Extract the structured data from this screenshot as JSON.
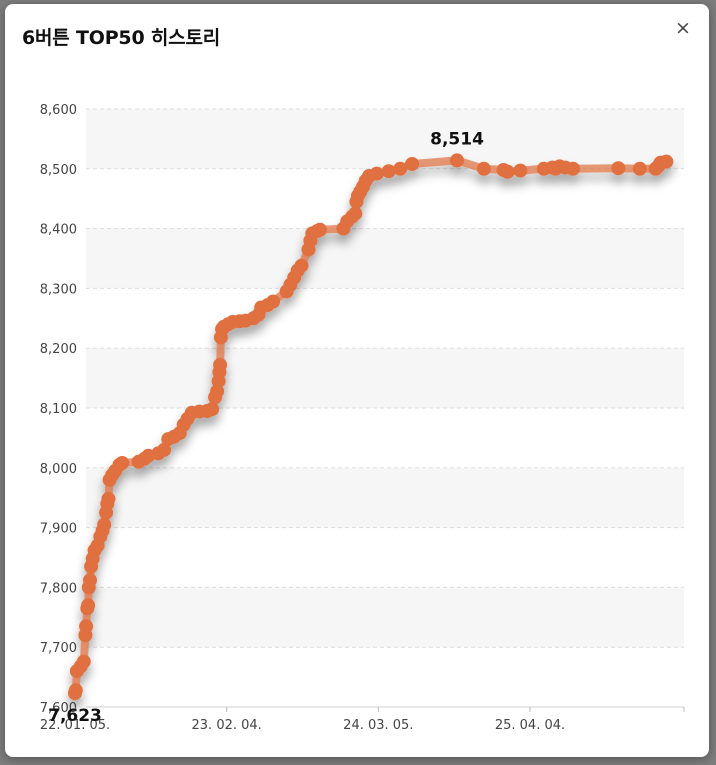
{
  "modal": {
    "title": "6버튼 TOP50 히스토리",
    "close_icon": "close-icon",
    "close_glyph": "×"
  },
  "colors": {
    "line": "#e07040",
    "band": "#f6f6f6",
    "grid": "#dddddd"
  },
  "chart_data": {
    "type": "line",
    "title": "",
    "xlabel": "",
    "ylabel": "",
    "ylim": [
      7600,
      8600
    ],
    "yticks": [
      "8,600",
      "8,500",
      "8,400",
      "8,300",
      "8,200",
      "8,100",
      "8,000",
      "7,900",
      "7,800",
      "7,700",
      "7,600"
    ],
    "xticks": [
      "22. 01. 05.",
      "23. 02. 04.",
      "24. 03. 05.",
      "25. 04. 04."
    ],
    "xtick_dates": [
      "2022-01-05",
      "2023-02-04",
      "2024-03-05",
      "2025-04-04"
    ],
    "annotations": [
      {
        "label": "7,623",
        "date": "2022-01-05",
        "value": 7623
      },
      {
        "label": "8,514",
        "date": "2024-09-26",
        "value": 8514
      }
    ],
    "series": [
      {
        "values": [
          [
            "2022-01-05",
            7623
          ],
          [
            "2022-01-07",
            7628
          ],
          [
            "2022-01-10",
            7660
          ],
          [
            "2022-01-20",
            7668
          ],
          [
            "2022-01-28",
            7676
          ],
          [
            "2022-02-01",
            7720
          ],
          [
            "2022-02-03",
            7735
          ],
          [
            "2022-02-06",
            7765
          ],
          [
            "2022-02-08",
            7770
          ],
          [
            "2022-02-10",
            7800
          ],
          [
            "2022-02-13",
            7812
          ],
          [
            "2022-02-16",
            7835
          ],
          [
            "2022-02-20",
            7848
          ],
          [
            "2022-02-25",
            7862
          ],
          [
            "2022-03-05",
            7870
          ],
          [
            "2022-03-12",
            7885
          ],
          [
            "2022-03-18",
            7895
          ],
          [
            "2022-03-22",
            7905
          ],
          [
            "2022-03-27",
            7925
          ],
          [
            "2022-03-30",
            7940
          ],
          [
            "2022-04-02",
            7948
          ],
          [
            "2022-04-05",
            7980
          ],
          [
            "2022-04-12",
            7988
          ],
          [
            "2022-04-20",
            7995
          ],
          [
            "2022-05-01",
            8005
          ],
          [
            "2022-05-08",
            8008
          ],
          [
            "2022-06-20",
            8010
          ],
          [
            "2022-07-05",
            8015
          ],
          [
            "2022-07-15",
            8020
          ],
          [
            "2022-08-10",
            8024
          ],
          [
            "2022-08-25",
            8030
          ],
          [
            "2022-09-05",
            8048
          ],
          [
            "2022-09-20",
            8052
          ],
          [
            "2022-10-05",
            8058
          ],
          [
            "2022-10-15",
            8072
          ],
          [
            "2022-10-25",
            8082
          ],
          [
            "2022-11-05",
            8092
          ],
          [
            "2022-11-25",
            8094
          ],
          [
            "2022-12-15",
            8095
          ],
          [
            "2022-12-28",
            8098
          ],
          [
            "2023-01-05",
            8118
          ],
          [
            "2023-01-10",
            8128
          ],
          [
            "2023-01-14",
            8145
          ],
          [
            "2023-01-16",
            8160
          ],
          [
            "2023-01-18",
            8172
          ],
          [
            "2023-01-20",
            8218
          ],
          [
            "2023-01-23",
            8232
          ],
          [
            "2023-01-28",
            8236
          ],
          [
            "2023-02-08",
            8240
          ],
          [
            "2023-02-20",
            8244
          ],
          [
            "2023-03-10",
            8245
          ],
          [
            "2023-03-25",
            8246
          ],
          [
            "2023-04-15",
            8250
          ],
          [
            "2023-04-28",
            8256
          ],
          [
            "2023-05-05",
            8268
          ],
          [
            "2023-05-22",
            8272
          ],
          [
            "2023-06-05",
            8278
          ],
          [
            "2023-07-10",
            8295
          ],
          [
            "2023-07-20",
            8306
          ],
          [
            "2023-07-30",
            8318
          ],
          [
            "2023-08-08",
            8330
          ],
          [
            "2023-08-18",
            8338
          ],
          [
            "2023-09-05",
            8365
          ],
          [
            "2023-09-10",
            8380
          ],
          [
            "2023-09-15",
            8392
          ],
          [
            "2023-09-28",
            8396
          ],
          [
            "2023-10-05",
            8398
          ],
          [
            "2023-12-05",
            8400
          ],
          [
            "2023-12-15",
            8412
          ],
          [
            "2023-12-28",
            8420
          ],
          [
            "2024-01-05",
            8425
          ],
          [
            "2024-01-08",
            8445
          ],
          [
            "2024-01-12",
            8455
          ],
          [
            "2024-01-18",
            8462
          ],
          [
            "2024-01-25",
            8470
          ],
          [
            "2024-02-01",
            8480
          ],
          [
            "2024-02-10",
            8488
          ],
          [
            "2024-03-01",
            8492
          ],
          [
            "2024-04-01",
            8496
          ],
          [
            "2024-05-01",
            8500
          ],
          [
            "2024-06-01",
            8508
          ],
          [
            "2024-09-26",
            8514
          ],
          [
            "2024-12-05",
            8500
          ],
          [
            "2025-01-25",
            8498
          ],
          [
            "2025-02-05",
            8495
          ],
          [
            "2025-03-10",
            8497
          ],
          [
            "2025-05-10",
            8500
          ],
          [
            "2025-06-01",
            8502
          ],
          [
            "2025-06-10",
            8500
          ],
          [
            "2025-06-20",
            8504
          ],
          [
            "2025-07-05",
            8502
          ],
          [
            "2025-07-25",
            8500
          ],
          [
            "2025-11-20",
            8501
          ],
          [
            "2026-01-15",
            8500
          ],
          [
            "2026-02-25",
            8500
          ],
          [
            "2026-03-05",
            8505
          ],
          [
            "2026-03-10",
            8510
          ],
          [
            "2026-03-25",
            8512
          ]
        ]
      }
    ]
  }
}
